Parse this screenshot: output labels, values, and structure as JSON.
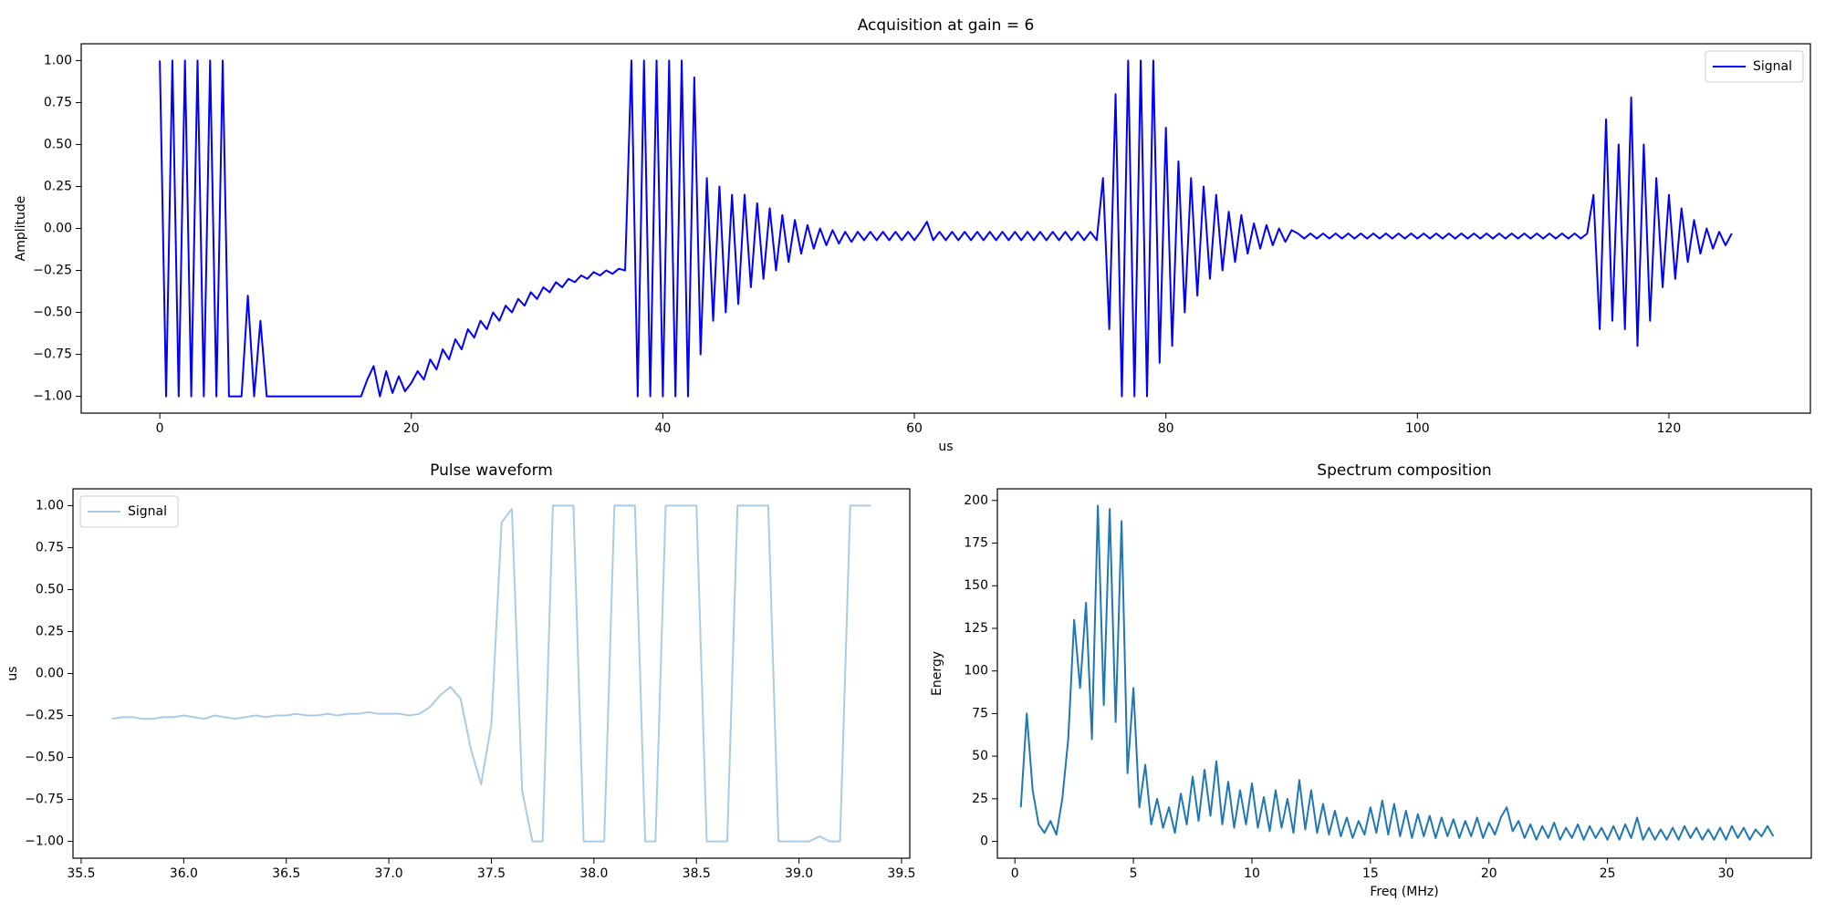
{
  "chart_data": [
    {
      "type": "line",
      "title": "Acquisition at gain = 6",
      "xlabel": "us",
      "ylabel": "Amplitude",
      "legend": "upper right",
      "grid": false,
      "x": [
        0,
        0.5,
        1,
        1.5,
        2,
        2.5,
        3,
        3.5,
        4,
        4.5,
        5,
        5.5,
        6,
        6.5,
        7,
        7.5,
        8,
        8.5,
        9,
        9.5,
        10,
        10.5,
        11,
        11.5,
        12,
        12.5,
        13,
        13.5,
        14,
        14.5,
        15,
        15.5,
        16,
        16.5,
        17,
        17.5,
        18,
        18.5,
        19,
        19.5,
        20,
        20.5,
        21,
        21.5,
        22,
        22.5,
        23,
        23.5,
        24,
        24.5,
        25,
        25.5,
        26,
        26.5,
        27,
        27.5,
        28,
        28.5,
        29,
        29.5,
        30,
        30.5,
        31,
        31.5,
        32,
        32.5,
        33,
        33.5,
        34,
        34.5,
        35,
        35.5,
        36,
        36.5,
        37,
        37.5,
        38,
        38.5,
        39,
        39.5,
        40,
        40.5,
        41,
        41.5,
        42,
        42.5,
        43,
        43.5,
        44,
        44.5,
        45,
        45.5,
        46,
        46.5,
        47,
        47.5,
        48,
        48.5,
        49,
        49.5,
        50,
        50.5,
        51,
        51.5,
        52,
        52.5,
        53,
        53.5,
        54,
        54.5,
        55,
        55.5,
        56,
        56.5,
        57,
        57.5,
        58,
        58.5,
        59,
        59.5,
        60,
        60.5,
        61,
        61.5,
        62,
        62.5,
        63,
        63.5,
        64,
        64.5,
        65,
        65.5,
        66,
        66.5,
        67,
        67.5,
        68,
        68.5,
        69,
        69.5,
        70,
        70.5,
        71,
        71.5,
        72,
        72.5,
        73,
        73.5,
        74,
        74.5,
        75,
        75.5,
        76,
        76.5,
        77,
        77.5,
        78,
        78.5,
        79,
        79.5,
        80,
        80.5,
        81,
        81.5,
        82,
        82.5,
        83,
        83.5,
        84,
        84.5,
        85,
        85.5,
        86,
        86.5,
        87,
        87.5,
        88,
        88.5,
        89,
        89.5,
        90,
        90.5,
        91,
        91.5,
        92,
        92.5,
        93,
        93.5,
        94,
        94.5,
        95,
        95.5,
        96,
        96.5,
        97,
        97.5,
        98,
        98.5,
        99,
        99.5,
        100,
        100.5,
        101,
        101.5,
        102,
        102.5,
        103,
        103.5,
        104,
        104.5,
        105,
        105.5,
        106,
        106.5,
        107,
        107.5,
        108,
        108.5,
        109,
        109.5,
        110,
        110.5,
        111,
        111.5,
        112,
        112.5,
        113,
        113.5,
        114,
        114.5,
        115,
        115.5,
        116,
        116.5,
        117,
        117.5,
        118,
        118.5,
        119,
        119.5,
        120,
        120.5,
        121,
        121.5,
        122,
        122.5,
        123,
        123.5,
        124,
        124.5,
        125
      ],
      "series": [
        {
          "name": "Signal",
          "color": "#0000ff",
          "values": [
            1,
            -1,
            1,
            -1,
            1,
            -1,
            1,
            -1,
            1,
            -1,
            1,
            -1,
            -1,
            -1,
            -0.4,
            -1,
            -0.55,
            -1,
            -1,
            -1,
            -1,
            -1,
            -1,
            -1,
            -1,
            -1,
            -1,
            -1,
            -1,
            -1,
            -1,
            -1,
            -1,
            -0.9,
            -0.82,
            -1,
            -0.85,
            -0.98,
            -0.88,
            -0.97,
            -0.92,
            -0.85,
            -0.9,
            -0.78,
            -0.84,
            -0.72,
            -0.78,
            -0.66,
            -0.72,
            -0.6,
            -0.65,
            -0.55,
            -0.6,
            -0.5,
            -0.55,
            -0.46,
            -0.5,
            -0.42,
            -0.46,
            -0.38,
            -0.42,
            -0.35,
            -0.38,
            -0.32,
            -0.35,
            -0.3,
            -0.32,
            -0.28,
            -0.3,
            -0.26,
            -0.28,
            -0.25,
            -0.27,
            -0.24,
            -0.25,
            1,
            -1,
            1,
            -1,
            1,
            -1,
            1,
            -1,
            1,
            -1,
            0.9,
            -0.75,
            0.3,
            -0.55,
            0.25,
            -0.5,
            0.2,
            -0.45,
            0.2,
            -0.35,
            0.15,
            -0.3,
            0.12,
            -0.25,
            0.08,
            -0.2,
            0.05,
            -0.15,
            0.02,
            -0.12,
            0,
            -0.1,
            -0.01,
            -0.09,
            -0.02,
            -0.08,
            -0.02,
            -0.07,
            -0.02,
            -0.07,
            -0.02,
            -0.07,
            -0.02,
            -0.07,
            -0.02,
            -0.07,
            -0.02,
            0.04,
            -0.07,
            -0.02,
            -0.07,
            -0.02,
            -0.07,
            -0.02,
            -0.07,
            -0.02,
            -0.07,
            -0.02,
            -0.07,
            -0.02,
            -0.07,
            -0.02,
            -0.07,
            -0.02,
            -0.07,
            -0.02,
            -0.07,
            -0.02,
            -0.07,
            -0.02,
            -0.07,
            -0.02,
            -0.07,
            -0.02,
            -0.07,
            0.3,
            -0.6,
            0.8,
            -1,
            1,
            -1,
            1,
            -1,
            1,
            -0.8,
            0.6,
            -0.7,
            0.4,
            -0.5,
            0.3,
            -0.4,
            0.25,
            -0.3,
            0.2,
            -0.25,
            0.1,
            -0.2,
            0.08,
            -0.15,
            0.03,
            -0.12,
            0.02,
            -0.1,
            0,
            -0.08,
            -0.01,
            -0.03,
            -0.06,
            -0.03,
            -0.06,
            -0.03,
            -0.06,
            -0.03,
            -0.06,
            -0.03,
            -0.06,
            -0.03,
            -0.06,
            -0.03,
            -0.06,
            -0.03,
            -0.06,
            -0.03,
            -0.06,
            -0.03,
            -0.06,
            -0.03,
            -0.06,
            -0.03,
            -0.06,
            -0.03,
            -0.06,
            -0.03,
            -0.06,
            -0.03,
            -0.06,
            -0.03,
            -0.06,
            -0.03,
            -0.06,
            -0.03,
            -0.06,
            -0.03,
            -0.06,
            -0.03,
            -0.06,
            -0.03,
            -0.06,
            -0.03,
            -0.06,
            -0.03,
            -0.06,
            -0.03,
            0.2,
            -0.6,
            0.65,
            -0.55,
            0.5,
            -0.6,
            0.78,
            -0.7,
            0.5,
            -0.55,
            0.3,
            -0.35,
            0.2,
            -0.3,
            0.12,
            -0.2,
            0.05,
            -0.15,
            0,
            -0.12,
            -0.02,
            -0.1,
            -0.03
          ]
        }
      ],
      "xlim": [
        -6.25,
        131.25
      ],
      "ylim": [
        -1.1,
        1.1
      ],
      "xticks": [
        0,
        20,
        40,
        60,
        80,
        100,
        120
      ],
      "yticks": [
        {
          "value": -1,
          "label": "−1.00"
        },
        {
          "value": -0.75,
          "label": "−0.75"
        },
        {
          "value": -0.5,
          "label": "−0.50"
        },
        {
          "value": -0.25,
          "label": "−0.25"
        },
        {
          "value": 0,
          "label": "0.00"
        },
        {
          "value": 0.25,
          "label": "0.25"
        },
        {
          "value": 0.5,
          "label": "0.50"
        },
        {
          "value": 0.75,
          "label": "0.75"
        },
        {
          "value": 1,
          "label": "1.00"
        }
      ]
    },
    {
      "type": "line",
      "title": "Pulse waveform",
      "ylabel": "us",
      "legend": "upper left",
      "grid": false,
      "x": [
        35.65,
        35.7,
        35.75,
        35.8,
        35.85,
        35.9,
        35.95,
        36,
        36.05,
        36.1,
        36.15,
        36.2,
        36.25,
        36.3,
        36.35,
        36.4,
        36.45,
        36.5,
        36.55,
        36.6,
        36.65,
        36.7,
        36.75,
        36.8,
        36.85,
        36.9,
        36.95,
        37,
        37.05,
        37.1,
        37.15,
        37.2,
        37.25,
        37.3,
        37.35,
        37.4,
        37.45,
        37.5,
        37.55,
        37.6,
        37.65,
        37.7,
        37.75,
        37.8,
        37.85,
        37.9,
        37.95,
        38,
        38.05,
        38.1,
        38.15,
        38.2,
        38.25,
        38.3,
        38.35,
        38.4,
        38.45,
        38.5,
        38.55,
        38.6,
        38.65,
        38.7,
        38.75,
        38.8,
        38.85,
        38.9,
        38.95,
        39,
        39.05,
        39.1,
        39.15,
        39.2,
        39.25,
        39.3,
        39.35
      ],
      "series": [
        {
          "name": "Signal",
          "color": "#a9cbe5",
          "values": [
            -0.27,
            -0.26,
            -0.26,
            -0.27,
            -0.27,
            -0.26,
            -0.26,
            -0.25,
            -0.26,
            -0.27,
            -0.25,
            -0.26,
            -0.27,
            -0.26,
            -0.25,
            -0.26,
            -0.25,
            -0.25,
            -0.24,
            -0.25,
            -0.25,
            -0.24,
            -0.25,
            -0.24,
            -0.24,
            -0.23,
            -0.24,
            -0.24,
            -0.24,
            -0.25,
            -0.24,
            -0.2,
            -0.13,
            -0.08,
            -0.15,
            -0.45,
            -0.66,
            -0.3,
            0.9,
            0.98,
            -0.7,
            -1,
            -1,
            1,
            1,
            1,
            -1,
            -1,
            -1,
            1,
            1,
            1,
            -1,
            -1,
            1,
            1,
            1,
            1,
            -1,
            -1,
            -1,
            1,
            1,
            1,
            1,
            -1,
            -1,
            -1,
            -1,
            -0.97,
            -1,
            -1,
            1,
            1,
            1
          ]
        }
      ],
      "xlim": [
        35.46,
        39.54
      ],
      "ylim": [
        -1.1,
        1.1
      ],
      "xticks": [
        35.5,
        {
          "value": 36,
          "label": "36.0"
        },
        36.5,
        {
          "value": 37,
          "label": "37.0"
        },
        37.5,
        {
          "value": 38,
          "label": "38.0"
        },
        38.5,
        {
          "value": 39,
          "label": "39.0"
        },
        39.5
      ],
      "yticks": [
        {
          "value": -1,
          "label": "−1.00"
        },
        {
          "value": -0.75,
          "label": "−0.75"
        },
        {
          "value": -0.5,
          "label": "−0.50"
        },
        {
          "value": -0.25,
          "label": "−0.25"
        },
        {
          "value": 0,
          "label": "0.00"
        },
        {
          "value": 0.25,
          "label": "0.25"
        },
        {
          "value": 0.5,
          "label": "0.50"
        },
        {
          "value": 0.75,
          "label": "0.75"
        },
        {
          "value": 1,
          "label": "1.00"
        }
      ]
    },
    {
      "type": "line",
      "title": "Spectrum composition",
      "xlabel": "Freq (MHz)",
      "ylabel": "Energy",
      "grid": false,
      "x": [
        0.25,
        0.5,
        0.75,
        1,
        1.25,
        1.5,
        1.75,
        2,
        2.25,
        2.5,
        2.75,
        3,
        3.25,
        3.5,
        3.75,
        4,
        4.25,
        4.5,
        4.75,
        5,
        5.25,
        5.5,
        5.75,
        6,
        6.25,
        6.5,
        6.75,
        7,
        7.25,
        7.5,
        7.75,
        8,
        8.25,
        8.5,
        8.75,
        9,
        9.25,
        9.5,
        9.75,
        10,
        10.25,
        10.5,
        10.75,
        11,
        11.25,
        11.5,
        11.75,
        12,
        12.25,
        12.5,
        12.75,
        13,
        13.25,
        13.5,
        13.75,
        14,
        14.25,
        14.5,
        14.75,
        15,
        15.25,
        15.5,
        15.75,
        16,
        16.25,
        16.5,
        16.75,
        17,
        17.25,
        17.5,
        17.75,
        18,
        18.25,
        18.5,
        18.75,
        19,
        19.25,
        19.5,
        19.75,
        20,
        20.25,
        20.5,
        20.75,
        21,
        21.25,
        21.5,
        21.75,
        22,
        22.25,
        22.5,
        22.75,
        23,
        23.25,
        23.5,
        23.75,
        24,
        24.25,
        24.5,
        24.75,
        25,
        25.25,
        25.5,
        25.75,
        26,
        26.25,
        26.5,
        26.75,
        27,
        27.25,
        27.5,
        27.75,
        28,
        28.25,
        28.5,
        28.75,
        29,
        29.25,
        29.5,
        29.75,
        30,
        30.25,
        30.5,
        30.75,
        31,
        31.25,
        31.5,
        31.75,
        32
      ],
      "series": [
        {
          "color": "#1f77b4",
          "values": [
            20,
            75,
            30,
            10,
            5,
            12,
            4,
            25,
            60,
            130,
            90,
            140,
            60,
            197,
            80,
            195,
            70,
            188,
            40,
            90,
            20,
            45,
            10,
            25,
            8,
            20,
            5,
            28,
            10,
            38,
            12,
            42,
            15,
            47,
            10,
            35,
            8,
            30,
            10,
            34,
            8,
            26,
            6,
            30,
            8,
            25,
            5,
            36,
            7,
            30,
            5,
            22,
            4,
            18,
            3,
            14,
            2,
            12,
            4,
            20,
            5,
            24,
            4,
            22,
            3,
            18,
            2,
            16,
            3,
            15,
            2,
            14,
            3,
            13,
            2,
            12,
            3,
            14,
            2,
            11,
            4,
            14,
            20,
            6,
            12,
            2,
            10,
            1,
            9,
            2,
            11,
            1,
            8,
            2,
            10,
            1,
            9,
            2,
            8,
            1,
            9,
            1,
            10,
            2,
            14,
            1,
            8,
            1,
            7,
            1,
            8,
            1,
            9,
            2,
            8,
            1,
            7,
            1,
            8,
            1,
            9,
            2,
            8,
            1,
            7,
            3,
            9,
            3
          ]
        }
      ],
      "xlim": [
        -0.74,
        33.6
      ],
      "ylim": [
        -9.85,
        206.85
      ],
      "xticks": [
        0,
        5,
        10,
        15,
        20,
        25,
        30
      ],
      "yticks": [
        0,
        25,
        50,
        75,
        100,
        125,
        150,
        175,
        200
      ]
    }
  ]
}
